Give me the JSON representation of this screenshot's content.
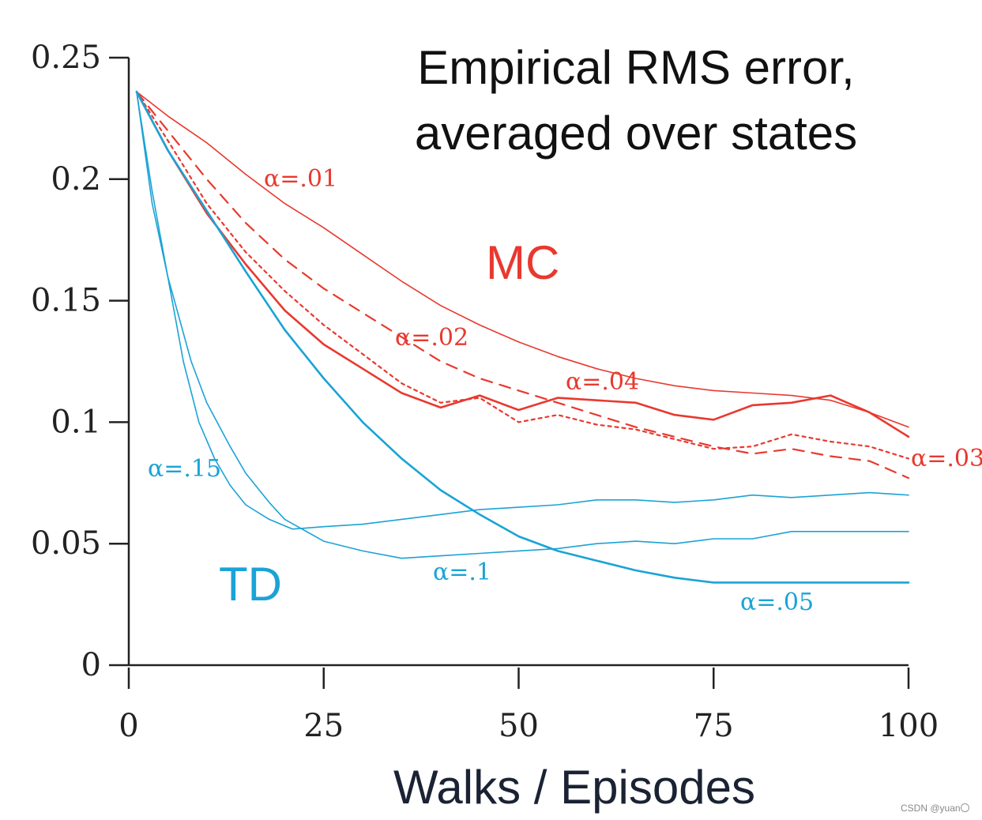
{
  "colors": {
    "mc": "#e8392f",
    "td": "#1ba3d6",
    "axis": "#222222"
  },
  "chart_data": {
    "type": "line",
    "title": [
      "Empirical RMS error,",
      "averaged over states"
    ],
    "xlabel": "Walks / Episodes",
    "ylabel": "",
    "xlim": [
      0,
      100
    ],
    "ylim": [
      0,
      0.25
    ],
    "xticks": [
      0,
      25,
      50,
      75,
      100
    ],
    "xtick_labels": [
      "0",
      "25",
      "50",
      "75",
      "100"
    ],
    "yticks": [
      0,
      0.05,
      0.1,
      0.15,
      0.2,
      0.25
    ],
    "ytick_labels": [
      "0",
      "0.05",
      "0.1",
      "0.15",
      "0.2",
      "0.25"
    ],
    "group_labels": {
      "mc": "MC",
      "td": "TD"
    },
    "series": [
      {
        "name": "MC α=.01",
        "group": "mc",
        "style": "solid-thin",
        "label": "α=.01",
        "x": [
          1,
          5,
          10,
          15,
          20,
          25,
          30,
          35,
          40,
          45,
          50,
          55,
          60,
          65,
          70,
          75,
          80,
          85,
          90,
          95,
          100
        ],
        "y": [
          0.236,
          0.226,
          0.215,
          0.202,
          0.19,
          0.18,
          0.169,
          0.158,
          0.148,
          0.14,
          0.133,
          0.127,
          0.122,
          0.118,
          0.115,
          0.113,
          0.112,
          0.111,
          0.109,
          0.104,
          0.098
        ]
      },
      {
        "name": "MC α=.02",
        "group": "mc",
        "style": "dashed",
        "label": "α=.02",
        "x": [
          1,
          5,
          10,
          15,
          20,
          25,
          30,
          35,
          40,
          45,
          50,
          55,
          60,
          65,
          70,
          75,
          80,
          85,
          90,
          95,
          100
        ],
        "y": [
          0.236,
          0.22,
          0.2,
          0.182,
          0.167,
          0.155,
          0.145,
          0.135,
          0.125,
          0.118,
          0.113,
          0.108,
          0.103,
          0.098,
          0.094,
          0.09,
          0.087,
          0.089,
          0.086,
          0.084,
          0.077
        ]
      },
      {
        "name": "MC α=.03",
        "group": "mc",
        "style": "dotted",
        "label": "α=.03",
        "x": [
          1,
          5,
          10,
          15,
          20,
          25,
          30,
          35,
          40,
          45,
          50,
          55,
          60,
          65,
          70,
          75,
          80,
          85,
          90,
          95,
          100
        ],
        "y": [
          0.236,
          0.216,
          0.19,
          0.17,
          0.154,
          0.14,
          0.128,
          0.116,
          0.108,
          0.11,
          0.1,
          0.103,
          0.099,
          0.097,
          0.093,
          0.089,
          0.09,
          0.095,
          0.092,
          0.09,
          0.085
        ]
      },
      {
        "name": "MC α=.04",
        "group": "mc",
        "style": "solid-thick",
        "label": "α=.04",
        "x": [
          1,
          5,
          10,
          15,
          20,
          25,
          30,
          35,
          40,
          45,
          50,
          55,
          60,
          65,
          70,
          75,
          80,
          85,
          90,
          95,
          100
        ],
        "y": [
          0.236,
          0.212,
          0.186,
          0.165,
          0.146,
          0.132,
          0.122,
          0.112,
          0.106,
          0.111,
          0.105,
          0.11,
          0.109,
          0.108,
          0.103,
          0.101,
          0.107,
          0.108,
          0.111,
          0.104,
          0.094
        ]
      },
      {
        "name": "TD α=.05",
        "group": "td",
        "style": "solid-thick",
        "label": "α=.05",
        "x": [
          1,
          5,
          10,
          15,
          20,
          25,
          30,
          35,
          40,
          45,
          50,
          55,
          60,
          65,
          70,
          75,
          80,
          85,
          90,
          95,
          100
        ],
        "y": [
          0.236,
          0.212,
          0.187,
          0.162,
          0.138,
          0.118,
          0.1,
          0.085,
          0.072,
          0.062,
          0.053,
          0.047,
          0.043,
          0.039,
          0.036,
          0.034,
          0.034,
          0.034,
          0.034,
          0.034,
          0.034
        ]
      },
      {
        "name": "TD α=.1",
        "group": "td",
        "style": "solid-thin",
        "label": "α=.1",
        "x": [
          1,
          3,
          5,
          8,
          10,
          13,
          15,
          18,
          20,
          25,
          30,
          35,
          40,
          45,
          50,
          55,
          60,
          65,
          70,
          75,
          80,
          85,
          90,
          95,
          100
        ],
        "y": [
          0.236,
          0.19,
          0.16,
          0.125,
          0.108,
          0.09,
          0.079,
          0.067,
          0.06,
          0.051,
          0.047,
          0.044,
          0.045,
          0.046,
          0.047,
          0.048,
          0.05,
          0.051,
          0.05,
          0.052,
          0.052,
          0.055,
          0.055,
          0.055,
          0.055
        ]
      },
      {
        "name": "TD α=.15",
        "group": "td",
        "style": "solid-thin",
        "label": "α=.15",
        "x": [
          1,
          3,
          5,
          7,
          9,
          11,
          13,
          15,
          18,
          21,
          25,
          30,
          35,
          40,
          45,
          50,
          55,
          60,
          65,
          70,
          75,
          80,
          85,
          90,
          95,
          100
        ],
        "y": [
          0.236,
          0.195,
          0.16,
          0.125,
          0.1,
          0.085,
          0.074,
          0.066,
          0.06,
          0.056,
          0.057,
          0.058,
          0.06,
          0.062,
          0.064,
          0.065,
          0.066,
          0.068,
          0.068,
          0.067,
          0.068,
          0.07,
          0.069,
          0.07,
          0.071,
          0.07
        ]
      }
    ]
  },
  "watermark": "CSDN @yuan〇"
}
